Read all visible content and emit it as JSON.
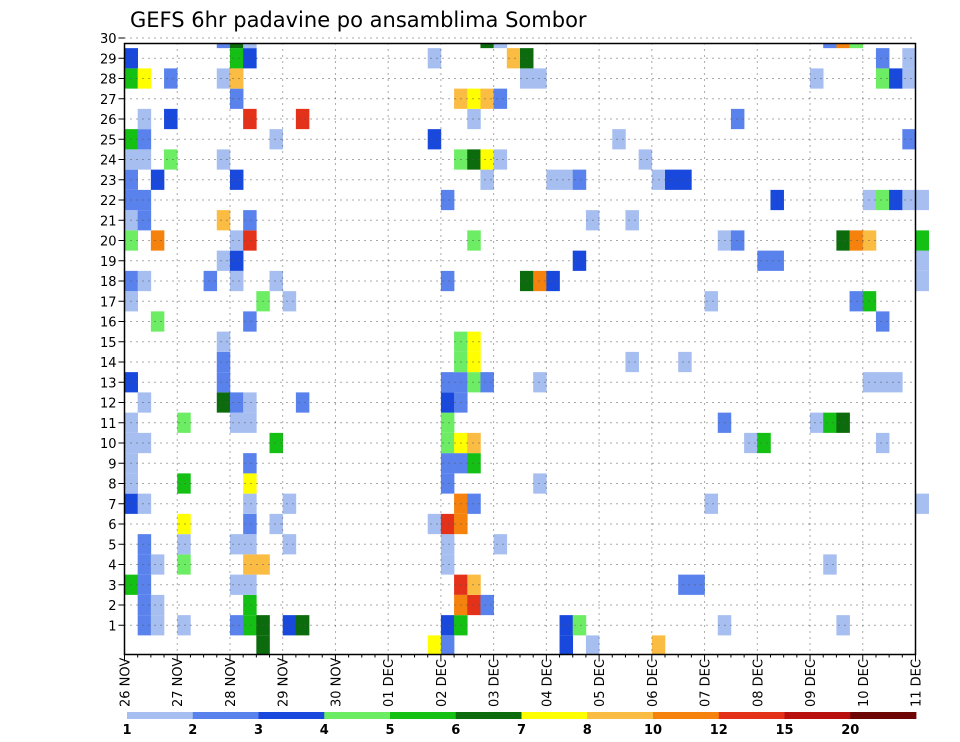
{
  "chart_data": {
    "type": "heatmap",
    "title": "GEFS 6hr padavine po ansamblima Sombor",
    "x_labels": [
      "26 NOV",
      "27 NOV",
      "28 NOV",
      "29 NOV",
      "30 NOV",
      "01 DEC",
      "02 DEC",
      "03 DEC",
      "04 DEC",
      "05 DEC",
      "06 DEC",
      "07 DEC",
      "08 DEC",
      "09 DEC",
      "10 DEC",
      "11 DEC"
    ],
    "y_labels": [
      1,
      2,
      3,
      4,
      5,
      6,
      7,
      8,
      9,
      10,
      11,
      12,
      13,
      14,
      15,
      16,
      17,
      18,
      19,
      20,
      21,
      22,
      23,
      24,
      25,
      26,
      27,
      28,
      29,
      30
    ],
    "steps_per_day": 4,
    "grid": true,
    "colorbar": {
      "labels": [
        "1",
        "2",
        "3",
        "4",
        "5",
        "6",
        "7",
        "8",
        "10",
        "12",
        "15",
        "20"
      ],
      "colors": [
        "#a6bff0",
        "#5a82ec",
        "#1848dc",
        "#6ced64",
        "#13c013",
        "#0c6b0c",
        "#ffff00",
        "#fbbc43",
        "#f6820e",
        "#e3311a",
        "#b80f0f",
        "#6e0505"
      ]
    },
    "cells": [
      [
        1,
        1,
        1
      ],
      [
        1,
        2,
        0
      ],
      [
        1,
        4,
        0
      ],
      [
        1,
        8,
        1
      ],
      [
        1,
        9,
        4
      ],
      [
        1,
        10,
        5
      ],
      [
        1,
        12,
        2
      ],
      [
        1,
        13,
        5
      ],
      [
        1,
        24,
        2
      ],
      [
        1,
        25,
        4
      ],
      [
        1,
        33,
        2
      ],
      [
        1,
        34,
        3
      ],
      [
        1,
        45,
        0
      ],
      [
        1,
        54,
        0
      ],
      [
        2,
        1,
        1
      ],
      [
        2,
        2,
        0
      ],
      [
        2,
        9,
        4
      ],
      [
        2,
        25,
        8
      ],
      [
        2,
        26,
        9
      ],
      [
        2,
        27,
        1
      ],
      [
        3,
        0,
        4
      ],
      [
        3,
        1,
        1
      ],
      [
        3,
        8,
        0
      ],
      [
        3,
        9,
        0
      ],
      [
        3,
        25,
        9
      ],
      [
        3,
        26,
        7
      ],
      [
        3,
        42,
        1
      ],
      [
        3,
        43,
        1
      ],
      [
        4,
        1,
        1
      ],
      [
        4,
        2,
        0
      ],
      [
        4,
        4,
        3
      ],
      [
        4,
        9,
        7
      ],
      [
        4,
        10,
        7
      ],
      [
        4,
        24,
        0
      ],
      [
        4,
        53,
        0
      ],
      [
        5,
        1,
        1
      ],
      [
        5,
        4,
        0
      ],
      [
        5,
        8,
        0
      ],
      [
        5,
        9,
        0
      ],
      [
        5,
        12,
        0
      ],
      [
        5,
        24,
        0
      ],
      [
        5,
        28,
        0
      ],
      [
        6,
        4,
        6
      ],
      [
        6,
        9,
        1
      ],
      [
        6,
        11,
        0
      ],
      [
        6,
        23,
        0
      ],
      [
        6,
        24,
        9
      ],
      [
        6,
        25,
        8
      ],
      [
        7,
        0,
        2
      ],
      [
        7,
        1,
        0
      ],
      [
        7,
        9,
        0
      ],
      [
        7,
        12,
        0
      ],
      [
        7,
        25,
        8
      ],
      [
        7,
        26,
        1
      ],
      [
        7,
        44,
        0
      ],
      [
        7,
        60,
        0
      ],
      [
        8,
        0,
        0
      ],
      [
        8,
        4,
        4
      ],
      [
        8,
        9,
        6
      ],
      [
        8,
        24,
        1
      ],
      [
        8,
        31,
        0
      ],
      [
        9,
        0,
        0
      ],
      [
        9,
        9,
        1
      ],
      [
        9,
        24,
        1
      ],
      [
        9,
        25,
        1
      ],
      [
        9,
        26,
        4
      ],
      [
        10,
        0,
        0
      ],
      [
        10,
        1,
        0
      ],
      [
        10,
        11,
        4
      ],
      [
        10,
        24,
        3
      ],
      [
        10,
        25,
        6
      ],
      [
        10,
        26,
        7
      ],
      [
        10,
        47,
        0
      ],
      [
        10,
        48,
        4
      ],
      [
        10,
        57,
        0
      ],
      [
        11,
        0,
        0
      ],
      [
        11,
        4,
        3
      ],
      [
        11,
        8,
        0
      ],
      [
        11,
        9,
        0
      ],
      [
        11,
        24,
        3
      ],
      [
        11,
        45,
        1
      ],
      [
        11,
        52,
        0
      ],
      [
        11,
        53,
        4
      ],
      [
        11,
        54,
        5
      ],
      [
        12,
        1,
        0
      ],
      [
        12,
        7,
        5
      ],
      [
        12,
        8,
        1
      ],
      [
        12,
        9,
        0
      ],
      [
        12,
        13,
        1
      ],
      [
        12,
        24,
        2
      ],
      [
        12,
        25,
        1
      ],
      [
        13,
        0,
        2
      ],
      [
        13,
        7,
        1
      ],
      [
        13,
        24,
        1
      ],
      [
        13,
        25,
        1
      ],
      [
        13,
        26,
        3
      ],
      [
        13,
        27,
        1
      ],
      [
        13,
        31,
        0
      ],
      [
        13,
        56,
        0
      ],
      [
        13,
        57,
        0
      ],
      [
        13,
        58,
        0
      ],
      [
        14,
        7,
        1
      ],
      [
        14,
        25,
        3
      ],
      [
        14,
        26,
        6
      ],
      [
        14,
        38,
        0
      ],
      [
        14,
        42,
        0
      ],
      [
        15,
        7,
        0
      ],
      [
        15,
        25,
        3
      ],
      [
        15,
        26,
        6
      ],
      [
        16,
        2,
        3
      ],
      [
        16,
        9,
        1
      ],
      [
        16,
        57,
        1
      ],
      [
        17,
        0,
        0
      ],
      [
        17,
        10,
        3
      ],
      [
        17,
        12,
        0
      ],
      [
        17,
        44,
        0
      ],
      [
        17,
        55,
        1
      ],
      [
        17,
        56,
        4
      ],
      [
        18,
        0,
        1
      ],
      [
        18,
        1,
        0
      ],
      [
        18,
        6,
        1
      ],
      [
        18,
        8,
        0
      ],
      [
        18,
        11,
        0
      ],
      [
        18,
        24,
        1
      ],
      [
        18,
        30,
        5
      ],
      [
        18,
        31,
        8
      ],
      [
        18,
        32,
        2
      ],
      [
        18,
        60,
        0
      ],
      [
        19,
        7,
        0
      ],
      [
        19,
        8,
        2
      ],
      [
        19,
        34,
        2
      ],
      [
        19,
        48,
        1
      ],
      [
        19,
        49,
        1
      ],
      [
        19,
        60,
        0
      ],
      [
        20,
        0,
        3
      ],
      [
        20,
        2,
        8
      ],
      [
        20,
        8,
        0
      ],
      [
        20,
        9,
        9
      ],
      [
        20,
        26,
        3
      ],
      [
        20,
        45,
        0
      ],
      [
        20,
        46,
        1
      ],
      [
        20,
        54,
        5
      ],
      [
        20,
        55,
        8
      ],
      [
        20,
        56,
        7
      ],
      [
        20,
        60,
        4
      ],
      [
        21,
        0,
        0
      ],
      [
        21,
        1,
        1
      ],
      [
        21,
        7,
        7
      ],
      [
        21,
        9,
        1
      ],
      [
        21,
        35,
        0
      ],
      [
        21,
        38,
        0
      ],
      [
        22,
        0,
        1
      ],
      [
        22,
        1,
        1
      ],
      [
        22,
        24,
        1
      ],
      [
        22,
        49,
        2
      ],
      [
        22,
        56,
        0
      ],
      [
        22,
        57,
        3
      ],
      [
        22,
        58,
        2
      ],
      [
        22,
        59,
        0
      ],
      [
        22,
        60,
        0
      ],
      [
        23,
        0,
        1
      ],
      [
        23,
        2,
        2
      ],
      [
        23,
        8,
        2
      ],
      [
        23,
        27,
        0
      ],
      [
        23,
        32,
        0
      ],
      [
        23,
        33,
        0
      ],
      [
        23,
        34,
        1
      ],
      [
        23,
        40,
        0
      ],
      [
        23,
        41,
        2
      ],
      [
        23,
        42,
        2
      ],
      [
        24,
        0,
        0
      ],
      [
        24,
        1,
        0
      ],
      [
        24,
        3,
        3
      ],
      [
        24,
        7,
        0
      ],
      [
        24,
        25,
        3
      ],
      [
        24,
        26,
        5
      ],
      [
        24,
        27,
        6
      ],
      [
        24,
        28,
        0
      ],
      [
        24,
        39,
        0
      ],
      [
        25,
        0,
        4
      ],
      [
        25,
        1,
        1
      ],
      [
        25,
        11,
        0
      ],
      [
        25,
        23,
        2
      ],
      [
        25,
        37,
        0
      ],
      [
        25,
        59,
        1
      ],
      [
        26,
        1,
        0
      ],
      [
        26,
        3,
        2
      ],
      [
        26,
        9,
        9
      ],
      [
        26,
        13,
        9
      ],
      [
        26,
        26,
        0
      ],
      [
        26,
        46,
        1
      ],
      [
        27,
        8,
        1
      ],
      [
        27,
        25,
        7
      ],
      [
        27,
        26,
        6
      ],
      [
        27,
        27,
        7
      ],
      [
        27,
        28,
        1
      ],
      [
        28,
        0,
        4
      ],
      [
        28,
        1,
        6
      ],
      [
        28,
        3,
        1
      ],
      [
        28,
        7,
        0
      ],
      [
        28,
        8,
        7
      ],
      [
        28,
        30,
        0
      ],
      [
        28,
        31,
        0
      ],
      [
        28,
        52,
        0
      ],
      [
        28,
        57,
        3
      ],
      [
        28,
        58,
        2
      ],
      [
        28,
        59,
        0
      ],
      [
        29,
        0,
        2
      ],
      [
        29,
        8,
        4
      ],
      [
        29,
        9,
        2
      ],
      [
        29,
        23,
        0
      ],
      [
        29,
        29,
        7
      ],
      [
        29,
        30,
        5
      ],
      [
        29,
        57,
        1
      ],
      [
        29,
        59,
        0
      ],
      [
        30,
        7,
        1
      ],
      [
        30,
        8,
        5
      ],
      [
        30,
        9,
        0
      ],
      [
        30,
        27,
        5
      ],
      [
        30,
        28,
        0
      ],
      [
        30,
        53,
        1
      ],
      [
        30,
        54,
        8
      ],
      [
        30,
        55,
        3
      ],
      [
        0,
        10,
        5
      ],
      [
        0,
        23,
        6
      ],
      [
        0,
        24,
        1
      ],
      [
        0,
        33,
        2
      ],
      [
        0,
        35,
        0
      ],
      [
        0,
        40,
        7
      ]
    ]
  }
}
